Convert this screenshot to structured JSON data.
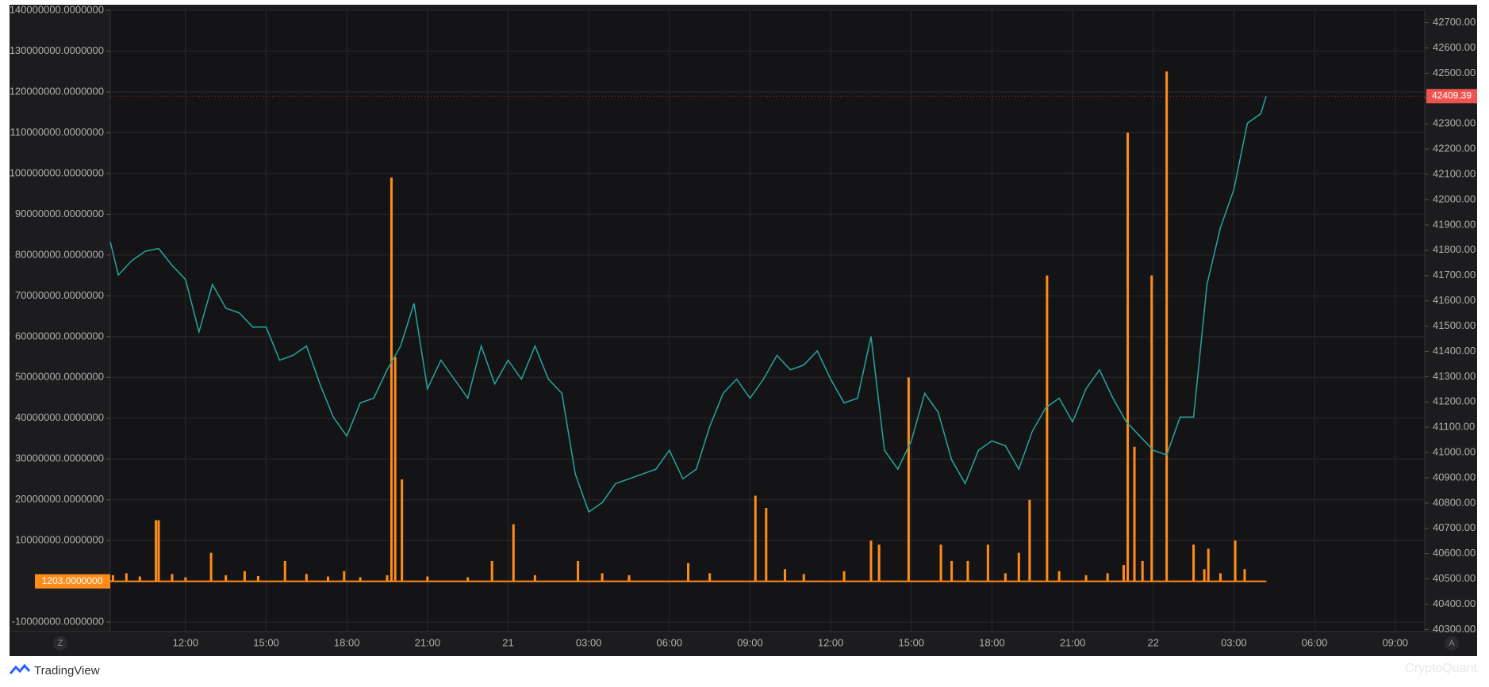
{
  "chart_data": {
    "type": "combo",
    "xlim": [
      9.2,
      58.1
    ],
    "xticks": [
      {
        "value": 12,
        "label": "12:00"
      },
      {
        "value": 15,
        "label": "15:00"
      },
      {
        "value": 18,
        "label": "18:00"
      },
      {
        "value": 21,
        "label": "21:00"
      },
      {
        "value": 24,
        "label": "21"
      },
      {
        "value": 27,
        "label": "03:00"
      },
      {
        "value": 30,
        "label": "06:00"
      },
      {
        "value": 33,
        "label": "09:00"
      },
      {
        "value": 36,
        "label": "12:00"
      },
      {
        "value": 39,
        "label": "15:00"
      },
      {
        "value": 42,
        "label": "18:00"
      },
      {
        "value": 45,
        "label": "21:00"
      },
      {
        "value": 48,
        "label": "22"
      },
      {
        "value": 51,
        "label": "03:00"
      },
      {
        "value": 54,
        "label": "06:00"
      },
      {
        "value": 57,
        "label": "09:00"
      }
    ],
    "ylim": [
      -12300000,
      140200000
    ],
    "yticks": [
      {
        "value": 140000000,
        "label": "140000000.0000000"
      },
      {
        "value": 130000000,
        "label": "130000000.0000000"
      },
      {
        "value": 120000000,
        "label": "120000000.0000000"
      },
      {
        "value": 110000000,
        "label": "110000000.0000000"
      },
      {
        "value": 100000000,
        "label": "100000000.0000000"
      },
      {
        "value": 90000000,
        "label": "90000000.0000000"
      },
      {
        "value": 80000000,
        "label": "80000000.0000000"
      },
      {
        "value": 70000000,
        "label": "70000000.0000000"
      },
      {
        "value": 60000000,
        "label": "60000000.0000000"
      },
      {
        "value": 50000000,
        "label": "50000000.0000000"
      },
      {
        "value": 40000000,
        "label": "40000000.0000000"
      },
      {
        "value": 30000000,
        "label": "30000000.0000000"
      },
      {
        "value": 20000000,
        "label": "20000000.0000000"
      },
      {
        "value": 10000000,
        "label": "10000000.0000000"
      },
      {
        "value": -10000000,
        "label": "-10000000.0000000"
      }
    ],
    "y2lim": [
      40292,
      42752
    ],
    "y2ticks": [
      {
        "value": 42700,
        "label": "42700.00"
      },
      {
        "value": 42600,
        "label": "42600.00"
      },
      {
        "value": 42500,
        "label": "42500.00"
      },
      {
        "value": 42400,
        "label": "42400.00"
      },
      {
        "value": 42300,
        "label": "42300.00"
      },
      {
        "value": 42200,
        "label": "42200.00"
      },
      {
        "value": 42100,
        "label": "42100.00"
      },
      {
        "value": 42000,
        "label": "42000.00"
      },
      {
        "value": 41900,
        "label": "41900.00"
      },
      {
        "value": 41800,
        "label": "41800.00"
      },
      {
        "value": 41700,
        "label": "41700.00"
      },
      {
        "value": 41600,
        "label": "41600.00"
      },
      {
        "value": 41500,
        "label": "41500.00"
      },
      {
        "value": 41400,
        "label": "41400.00"
      },
      {
        "value": 41300,
        "label": "41300.00"
      },
      {
        "value": 41200,
        "label": "41200.00"
      },
      {
        "value": 41100,
        "label": "41100.00"
      },
      {
        "value": 41000,
        "label": "41000.00"
      },
      {
        "value": 40900,
        "label": "40900.00"
      },
      {
        "value": 40800,
        "label": "40800.00"
      },
      {
        "value": 40700,
        "label": "40700.00"
      },
      {
        "value": 40600,
        "label": "40600.00"
      },
      {
        "value": 40500,
        "label": "40500.00"
      },
      {
        "value": 40400,
        "label": "40400.00"
      },
      {
        "value": 40300,
        "label": "40300.00"
      }
    ],
    "grid": true,
    "series": [
      {
        "type": "bar",
        "color": "#ff8c1a",
        "last_label": "1203.0000000",
        "x": [
          9.3,
          9.8,
          10.3,
          10.9,
          11.0,
          11.5,
          12.0,
          12.95,
          13.5,
          14.2,
          14.7,
          15.7,
          16.5,
          17.3,
          17.9,
          18.5,
          19.5,
          19.66,
          19.8,
          20.05,
          21.0,
          22.5,
          23.4,
          24.2,
          25.0,
          26.6,
          27.5,
          28.5,
          30.7,
          31.5,
          33.2,
          33.6,
          34.3,
          35.0,
          36.5,
          37.5,
          37.8,
          38.9,
          40.1,
          40.5,
          41.1,
          41.85,
          42.5,
          43.0,
          43.4,
          44.05,
          44.5,
          45.5,
          46.3,
          46.9,
          47.05,
          47.3,
          47.6,
          47.94,
          48.5,
          49.5,
          49.9,
          50.05,
          50.5,
          51.05,
          51.4,
          52.2
        ],
        "values": [
          1500000,
          2000000,
          1200000,
          15000000,
          15000000,
          1800000,
          1000000,
          7000000,
          1500000,
          2500000,
          1300000,
          5000000,
          1800000,
          1200000,
          2500000,
          1000000,
          1500000,
          99000000,
          55000000,
          25000000,
          1200000,
          1000000,
          5000000,
          14000000,
          1500000,
          5000000,
          2000000,
          1500000,
          4500000,
          2000000,
          21000000,
          18000000,
          3000000,
          1800000,
          2500000,
          10000000,
          9000000,
          50000000,
          9000000,
          5000000,
          5000000,
          9000000,
          2000000,
          7000000,
          20000000,
          75000000,
          2500000,
          1500000,
          2000000,
          4000000,
          110000000,
          33000000,
          5000000,
          75000000,
          125000000,
          9000000,
          3000000,
          8000000,
          2000000,
          10000000,
          3000000,
          1203
        ]
      },
      {
        "type": "line",
        "axis": "y2",
        "color": "#26a69a",
        "last_color": "#ef5350",
        "x": [
          9.2,
          9.5,
          10,
          10.5,
          11,
          11.5,
          12,
          12.5,
          13,
          13.5,
          14,
          14.5,
          15,
          15.5,
          16,
          16.5,
          17,
          17.5,
          18,
          18.5,
          19,
          19.5,
          20,
          20.5,
          21,
          21.5,
          22,
          22.5,
          23,
          23.5,
          24,
          24.5,
          25,
          25.5,
          26,
          26.5,
          27,
          27.5,
          28,
          28.5,
          29,
          29.5,
          30,
          30.5,
          31,
          31.5,
          32,
          32.5,
          33,
          33.5,
          34,
          34.5,
          35,
          35.5,
          36,
          36.5,
          37,
          37.5,
          38,
          38.5,
          39,
          39.5,
          40,
          40.5,
          41,
          41.5,
          42,
          42.5,
          43,
          43.5,
          44,
          44.5,
          45,
          45.5,
          46,
          46.5,
          47,
          47.5,
          48,
          48.5,
          49,
          49.5,
          50,
          50.5,
          51,
          51.5,
          52,
          52.2
        ],
        "values": [
          41834,
          41702,
          41759,
          41796,
          41807,
          41740,
          41684,
          41477,
          41665,
          41571,
          41552,
          41496,
          41496,
          41365,
          41384,
          41421,
          41271,
          41140,
          41065,
          41196,
          41215,
          41327,
          41421,
          41590,
          41252,
          41365,
          41290,
          41215,
          41421,
          41271,
          41365,
          41290,
          41421,
          41290,
          41234,
          40915,
          40765,
          40802,
          40877,
          40896,
          40915,
          40934,
          41009,
          40896,
          40934,
          41102,
          41234,
          41290,
          41215,
          41290,
          41384,
          41327,
          41346,
          41402,
          41290,
          41196,
          41215,
          41459,
          41009,
          40934,
          41046,
          41234,
          41159,
          40971,
          40877,
          41009,
          41046,
          41027,
          40934,
          41084,
          41177,
          41215,
          41121,
          41252,
          41327,
          41215,
          41121,
          41065,
          41009,
          40990,
          41140,
          41140,
          41665,
          41890,
          42040,
          42302,
          42340,
          42409.39
        ]
      }
    ]
  },
  "ui": {
    "left_button": "Z",
    "right_button": "A",
    "brand": "TradingView",
    "watermark": "CryptoQuant"
  }
}
